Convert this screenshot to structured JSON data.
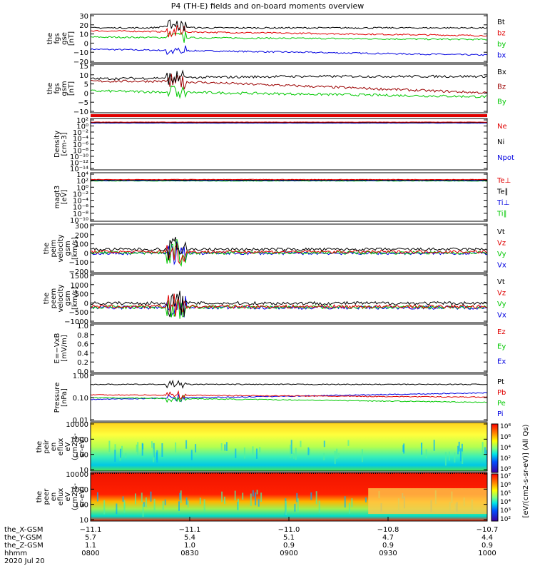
{
  "title": "P4 (TH-E) fields and on-board moments overview",
  "date": "2020 Jul 20",
  "colors": {
    "black": "#000000",
    "red": "#e00000",
    "green": "#00c800",
    "blue": "#0000e0",
    "darkred": "#9b0000",
    "yellow": "#ffff3c",
    "orange": "#ff9000",
    "cyan": "#00d2e6"
  },
  "panels": [
    {
      "id": "fgs-gse",
      "ylabel": [
        "the",
        "fgs",
        "gse",
        "[nT]"
      ],
      "yticks": [
        "30",
        "20",
        "10",
        "0",
        "−10",
        "−20"
      ],
      "legend": [
        {
          "label": "Bt",
          "color": "black"
        },
        {
          "label": "bz",
          "color": "red"
        },
        {
          "label": "by",
          "color": "green"
        },
        {
          "label": "bx",
          "color": "blue"
        }
      ]
    },
    {
      "id": "fgs-gsm",
      "ylabel": [
        "the",
        "fgs",
        "gsm",
        "[nT]"
      ],
      "yticks": [
        "15",
        "10",
        "5",
        "0",
        "−5",
        "−10"
      ],
      "legend": [
        {
          "label": "Bx",
          "color": "black"
        },
        {
          "label": "Bz",
          "color": "darkred"
        },
        {
          "label": "By",
          "color": "green"
        }
      ]
    },
    {
      "id": "density",
      "ylabel": [
        "Density",
        "[cm-3]"
      ],
      "yticks": [
        "10²",
        "10⁰",
        "10⁻²",
        "10⁻⁴",
        "10⁻⁶",
        "10⁻⁸",
        "10⁻¹⁰",
        "10⁻¹²",
        "10⁻¹⁴"
      ],
      "legend": [
        {
          "label": "Ne",
          "color": "red"
        },
        {
          "label": "Ni",
          "color": "black"
        },
        {
          "label": "Npot",
          "color": "blue"
        }
      ]
    },
    {
      "id": "magt3",
      "ylabel": [
        "magt3",
        "[eV]"
      ],
      "yticks": [
        "10⁴",
        "10²",
        "10⁰",
        "10⁻²",
        "10⁻⁴",
        "10⁻⁶",
        "10⁻⁸",
        "10⁻¹⁰"
      ],
      "legend": [
        {
          "label": "Te⊥",
          "color": "red"
        },
        {
          "label": "Te∥",
          "color": "black"
        },
        {
          "label": "Ti⊥",
          "color": "blue"
        },
        {
          "label": "Ti∥",
          "color": "green"
        }
      ]
    },
    {
      "id": "peim",
      "ylabel": [
        "the",
        "peim",
        "velocity",
        "gsm",
        "[km/s]"
      ],
      "yticks": [
        "300",
        "200",
        "100",
        "0",
        "−100",
        "−200"
      ],
      "legend": [
        {
          "label": "Vt",
          "color": "black"
        },
        {
          "label": "Vz",
          "color": "red"
        },
        {
          "label": "Vy",
          "color": "green"
        },
        {
          "label": "Vx",
          "color": "blue"
        }
      ]
    },
    {
      "id": "peem",
      "ylabel": [
        "the",
        "peem",
        "velocity",
        "gsm",
        "[km/s]"
      ],
      "yticks": [
        "1500",
        "1000",
        "500",
        "0",
        "−500",
        "−1000"
      ],
      "legend": [
        {
          "label": "Vt",
          "color": "black"
        },
        {
          "label": "Vz",
          "color": "red"
        },
        {
          "label": "Vy",
          "color": "green"
        },
        {
          "label": "Vx",
          "color": "blue"
        }
      ]
    },
    {
      "id": "efield",
      "ylabel": [
        "E=−VxB",
        "[mV/m]"
      ],
      "yticks": [
        "1.0",
        "0.8",
        "0.6",
        "0.4",
        "0.2",
        "0.0"
      ],
      "legend": [
        {
          "label": "Ez",
          "color": "red"
        },
        {
          "label": "Ey",
          "color": "green"
        },
        {
          "label": "Ex",
          "color": "blue"
        }
      ]
    },
    {
      "id": "pressure",
      "ylabel": [
        "Pressure",
        "[nPa]"
      ],
      "yticks": [
        "1.00",
        "0.10",
        "0.01"
      ],
      "legend": [
        {
          "label": "Pt",
          "color": "black"
        },
        {
          "label": "Pb",
          "color": "red"
        },
        {
          "label": "Pe",
          "color": "green"
        },
        {
          "label": "Pi",
          "color": "blue"
        }
      ]
    },
    {
      "id": "peir",
      "ylabel": [
        "the",
        "peir",
        "en",
        "eflux",
        "eV",
        "(cm2-s-",
        "sr-eV)"
      ],
      "yticks": [
        "10000",
        "1000",
        "100",
        "10"
      ]
    },
    {
      "id": "peer",
      "ylabel": [
        "the",
        "peer",
        "en",
        "eflux",
        "eV",
        "(cm2-s-",
        "sr-eV)"
      ],
      "yticks": [
        "10000",
        "1000",
        "100",
        "10"
      ]
    }
  ],
  "colorbar": {
    "ticks_top": [
      "10⁸",
      "10⁶",
      "10⁴",
      "10²",
      "10⁰"
    ],
    "ticks_bottom": [
      "10⁷",
      "10⁶",
      "10⁵",
      "10⁴",
      "10³",
      "10²"
    ],
    "label": "[eV/(cm2-s-sr-eV)] (All Qs)"
  },
  "chart_data": {
    "type": "line",
    "title": "P4 (TH-E) fields and on-board moments overview",
    "x_units": "UT hhmm",
    "x_range": [
      "0800",
      "1000"
    ],
    "x_ticks": [
      "0800",
      "0830",
      "0900",
      "0930",
      "1000"
    ],
    "series": [
      {
        "name": "Bt (fgs gse)",
        "units": "nT",
        "approx_level": [
          18,
          24,
          16,
          16,
          18
        ]
      },
      {
        "name": "bz (fgs gse)",
        "units": "nT",
        "approx_level": [
          16,
          16,
          11,
          10,
          10
        ]
      },
      {
        "name": "by (fgs gse)",
        "units": "nT",
        "approx_level": [
          8,
          8,
          6,
          6,
          4
        ]
      },
      {
        "name": "bx (fgs gse)",
        "units": "nT",
        "approx_level": [
          -7,
          -4,
          -9,
          -11,
          -14
        ]
      },
      {
        "name": "Pt",
        "units": "nPa",
        "approx_level": [
          0.3,
          0.3,
          0.28,
          0.28,
          0.28
        ]
      },
      {
        "name": "Pb",
        "units": "nPa",
        "approx_level": [
          0.15,
          0.14,
          0.09,
          0.09,
          0.1
        ]
      }
    ],
    "orbit": {
      "rows": [
        {
          "label": "the_X-GSM",
          "values": [
            "−11.1",
            "−11.1",
            "−11.0",
            "−10.8",
            "−10.7"
          ]
        },
        {
          "label": "the_Y-GSM",
          "values": [
            "5.7",
            "5.4",
            "5.1",
            "4.7",
            "4.4"
          ]
        },
        {
          "label": "the_Z-GSM",
          "values": [
            "1.1",
            "1.0",
            "0.9",
            "0.9",
            "0.9"
          ]
        },
        {
          "label": "hhmm",
          "values": [
            "0800",
            "0830",
            "0900",
            "0930",
            "1000"
          ]
        }
      ]
    }
  }
}
